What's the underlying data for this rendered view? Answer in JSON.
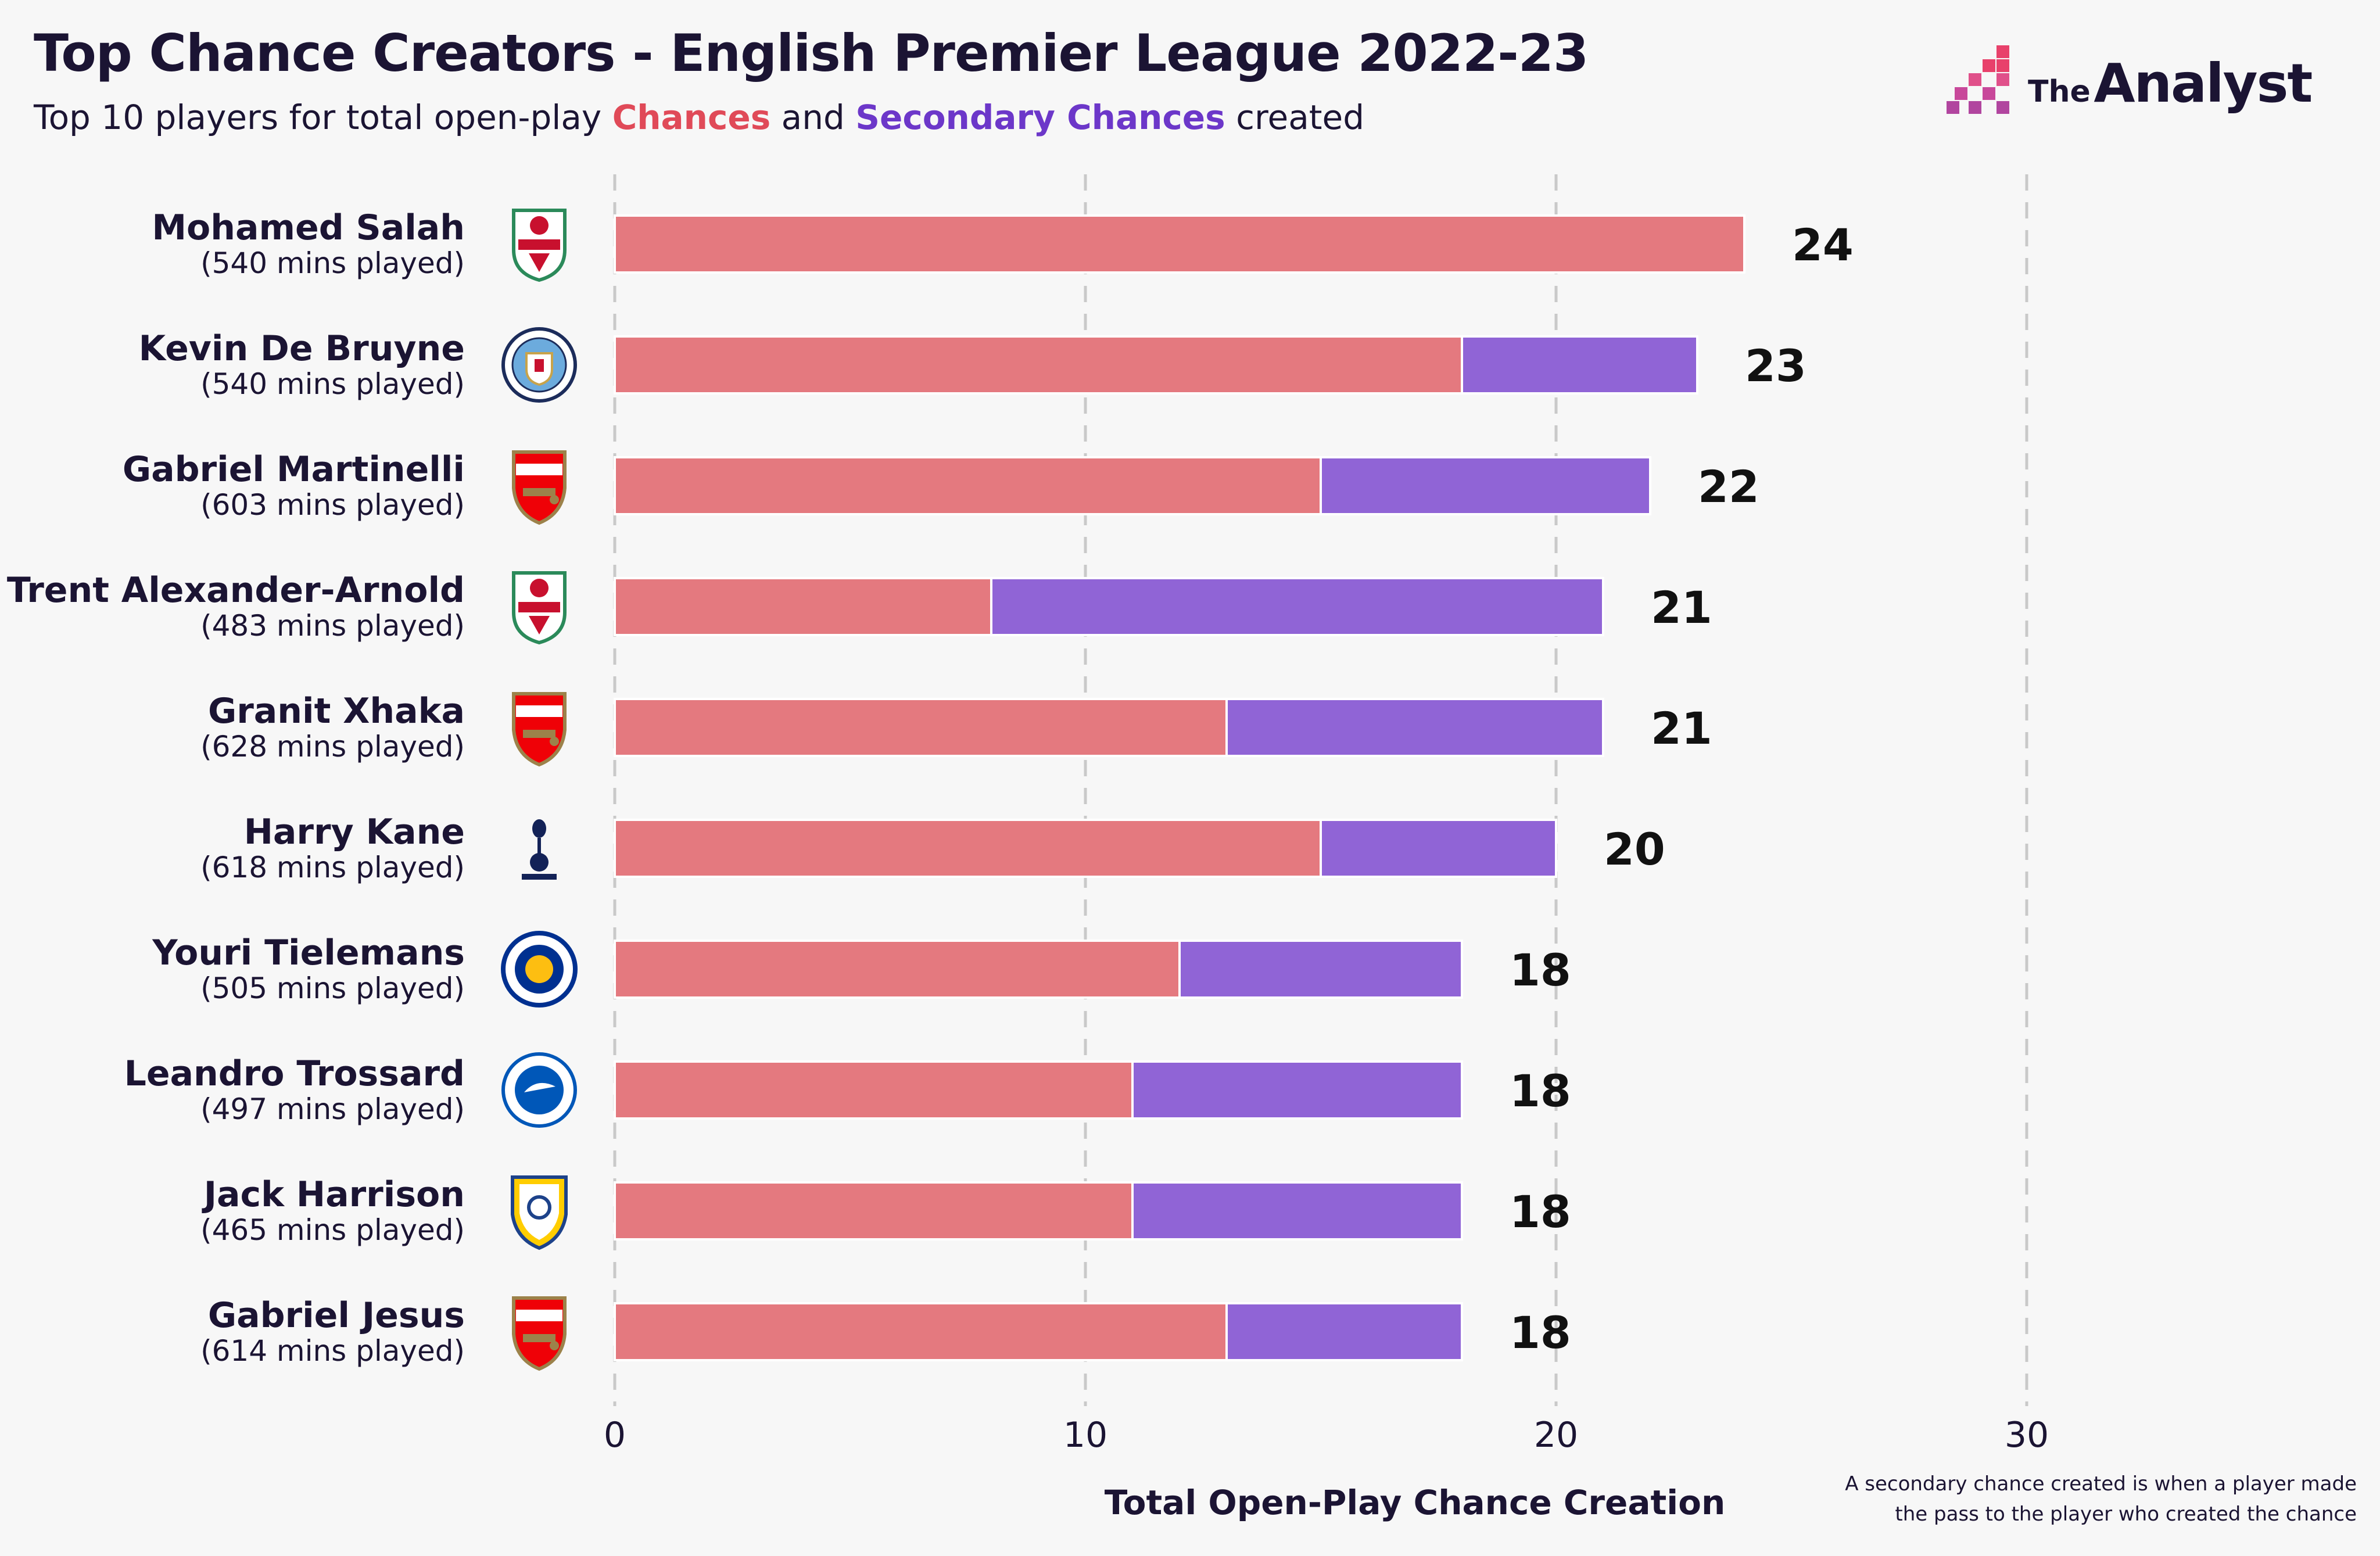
{
  "header": {
    "title": "Top Chance Creators - English Premier League 2022-23",
    "subtitle_prefix": "Top 10 players for total open-play ",
    "subtitle_series_a": "Chances",
    "subtitle_mid": " and ",
    "subtitle_series_b": "Secondary Chances",
    "subtitle_suffix": " created"
  },
  "logo": {
    "the": "The",
    "analyst": "Analyst"
  },
  "footnote": {
    "line1": "A secondary chance created is when a player made",
    "line2": "the pass to the player who created the chance"
  },
  "colors": {
    "chances": "#e4797f",
    "secondary": "#9064d6",
    "text": "#1b1433",
    "grid": "#c9c9c9",
    "highlight_chances": "#e04a58",
    "highlight_secondary": "#6c37c9"
  },
  "chart_data": {
    "type": "bar",
    "orientation": "horizontal",
    "stacked": true,
    "xlabel": "Total Open-Play Chance Creation",
    "xlim": [
      0,
      30
    ],
    "xticks": [
      0,
      10,
      20,
      30
    ],
    "grid": "vertical dashed",
    "players": [
      {
        "name": "Mohamed Salah",
        "minutes": "(540 mins played)",
        "club_icon": "liverpool-crest-icon"
      },
      {
        "name": "Kevin De Bruyne",
        "minutes": "(540 mins played)",
        "club_icon": "manchester-city-crest-icon"
      },
      {
        "name": "Gabriel Martinelli",
        "minutes": "(603 mins played)",
        "club_icon": "arsenal-crest-icon"
      },
      {
        "name": "Trent Alexander-Arnold",
        "minutes": "(483 mins played)",
        "club_icon": "liverpool-crest-icon"
      },
      {
        "name": "Granit Xhaka",
        "minutes": "(628 mins played)",
        "club_icon": "arsenal-crest-icon"
      },
      {
        "name": "Harry Kane",
        "minutes": "(618 mins played)",
        "club_icon": "tottenham-crest-icon"
      },
      {
        "name": "Youri Tielemans",
        "minutes": "(505 mins played)",
        "club_icon": "leicester-crest-icon"
      },
      {
        "name": "Leandro Trossard",
        "minutes": "(497 mins played)",
        "club_icon": "brighton-crest-icon"
      },
      {
        "name": "Jack Harrison",
        "minutes": "(465 mins played)",
        "club_icon": "leeds-crest-icon"
      },
      {
        "name": "Gabriel Jesus",
        "minutes": "(614 mins played)",
        "club_icon": "arsenal-crest-icon"
      }
    ],
    "series": [
      {
        "name": "Chances",
        "values": [
          24,
          18,
          15,
          8,
          13,
          15,
          12,
          11,
          11,
          13
        ]
      },
      {
        "name": "Secondary Chances",
        "values": [
          0,
          5,
          7,
          13,
          8,
          5,
          6,
          7,
          7,
          5
        ]
      }
    ],
    "totals": [
      "24",
      "23",
      "22",
      "21",
      "21",
      "20",
      "18",
      "18",
      "18",
      "18"
    ]
  }
}
